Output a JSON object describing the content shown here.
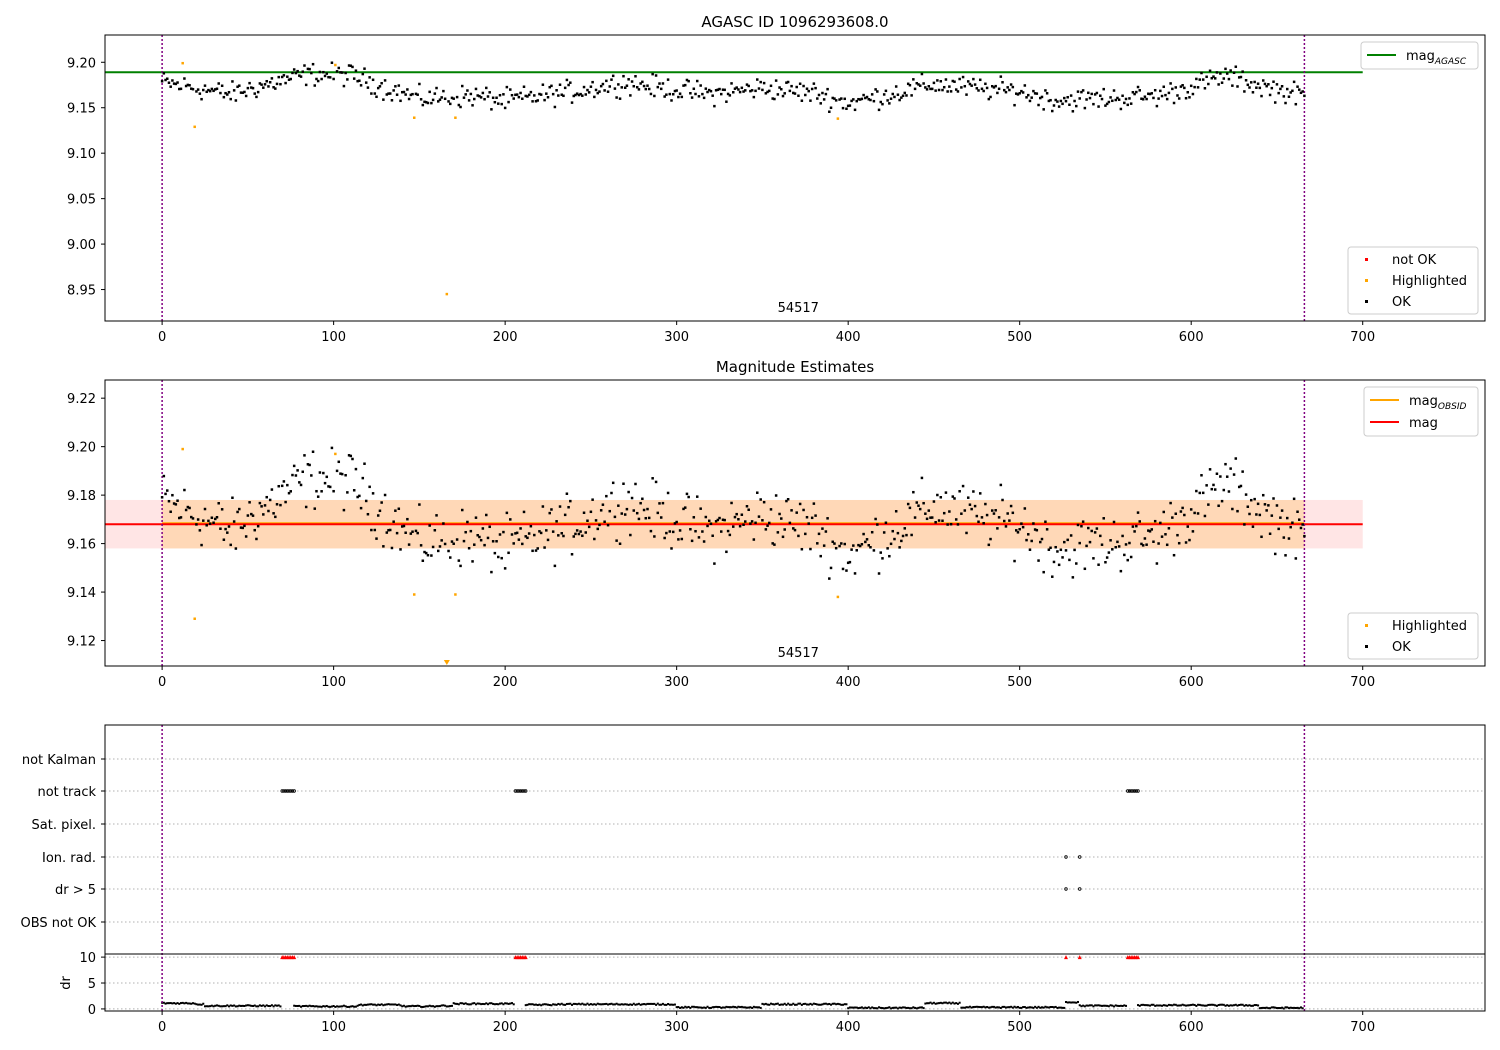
{
  "chart_data": [
    {
      "type": "scatter",
      "title": "AGASC ID 1096293608.0",
      "xlim": [
        -33.3,
        771.3
      ],
      "ylim": [
        8.9154,
        9.23
      ],
      "xticks": [
        0,
        100,
        200,
        300,
        400,
        500,
        600,
        700
      ],
      "yticks": [
        8.95,
        9.0,
        9.05,
        9.1,
        9.15,
        9.2
      ],
      "ytick_labels": [
        "8.95",
        "9.00",
        "9.05",
        "9.10",
        "9.15",
        "9.20"
      ],
      "grid": false,
      "vlines": [
        0,
        666
      ],
      "vline_color": "#800080",
      "obsid_label": "54517",
      "obsid_label_x": 333,
      "hline": {
        "name": "mag_AGASC",
        "y": 9.189,
        "x_range": [
          -33.3,
          700
        ],
        "color": "#008000"
      },
      "ok_trend": [
        [
          0,
          9.178
        ],
        [
          40,
          9.165
        ],
        [
          60,
          9.175
        ],
        [
          85,
          9.187
        ],
        [
          110,
          9.186
        ],
        [
          130,
          9.172
        ],
        [
          150,
          9.16
        ],
        [
          180,
          9.163
        ],
        [
          200,
          9.158
        ],
        [
          240,
          9.168
        ],
        [
          270,
          9.178
        ],
        [
          290,
          9.172
        ],
        [
          320,
          9.165
        ],
        [
          350,
          9.172
        ],
        [
          380,
          9.166
        ],
        [
          400,
          9.155
        ],
        [
          420,
          9.163
        ],
        [
          450,
          9.176
        ],
        [
          470,
          9.172
        ],
        [
          500,
          9.168
        ],
        [
          520,
          9.158
        ],
        [
          550,
          9.16
        ],
        [
          580,
          9.163
        ],
        [
          600,
          9.173
        ],
        [
          620,
          9.185
        ],
        [
          640,
          9.174
        ],
        [
          666,
          9.163
        ]
      ],
      "ok_spread": 0.008,
      "series": [
        {
          "name": "not OK",
          "color": "#ff0000",
          "points": []
        },
        {
          "name": "Highlighted",
          "color": "#ffa500",
          "points": [
            [
              12,
              9.199
            ],
            [
              19,
              9.129
            ],
            [
              101,
              9.197
            ],
            [
              147,
              9.139
            ],
            [
              166,
              8.945
            ],
            [
              171,
              9.139
            ],
            [
              394,
              9.138
            ]
          ]
        },
        {
          "name": "OK",
          "color": "#000000",
          "count": 666
        }
      ],
      "legend_upper": {
        "position": "upper right",
        "entries": [
          {
            "label": "mag",
            "sub": "AGASC",
            "color": "#008000"
          }
        ]
      },
      "legend_lower": {
        "position": "lower right",
        "entries": [
          {
            "label": "not OK",
            "color": "#ff0000"
          },
          {
            "label": "Highlighted",
            "color": "#ffa500"
          },
          {
            "label": "OK",
            "color": "#000000"
          }
        ]
      }
    },
    {
      "type": "scatter",
      "title": "Magnitude Estimates",
      "xlim": [
        -33.3,
        771.3
      ],
      "ylim": [
        9.1095,
        9.2275
      ],
      "xticks": [
        0,
        100,
        200,
        300,
        400,
        500,
        600,
        700
      ],
      "yticks": [
        9.12,
        9.14,
        9.16,
        9.18,
        9.2,
        9.22
      ],
      "ytick_labels": [
        "9.12",
        "9.14",
        "9.16",
        "9.18",
        "9.20",
        "9.22"
      ],
      "grid": false,
      "vlines": [
        0,
        666
      ],
      "obsid_label": "54517",
      "obsid_label_x": 333,
      "mag": {
        "name": "mag",
        "y": 9.168,
        "band": [
          9.158,
          9.178
        ],
        "x_range": [
          -33.3,
          700
        ],
        "color": "#ff0000"
      },
      "mag_obsid": {
        "name": "mag_OBSID",
        "y": 9.1683,
        "band": [
          9.158,
          9.178
        ],
        "x_range": [
          0,
          666
        ],
        "color": "#ffa500"
      },
      "highlighted": [
        [
          12,
          9.199
        ],
        [
          19,
          9.129
        ],
        [
          101,
          9.197
        ],
        [
          147,
          9.139
        ],
        [
          171,
          9.139
        ],
        [
          394,
          9.138
        ]
      ],
      "highlighted_off_scale": [
        166
      ],
      "legend_upper": {
        "position": "upper right",
        "entries": [
          {
            "label": "mag",
            "sub": "OBSID",
            "color": "#ffa500"
          },
          {
            "label": "mag",
            "sub": "",
            "color": "#ff0000"
          }
        ]
      },
      "legend_lower": {
        "position": "lower right",
        "entries": [
          {
            "label": "Highlighted",
            "color": "#ffa500"
          },
          {
            "label": "OK",
            "color": "#000000"
          }
        ]
      }
    },
    {
      "type": "scatter",
      "title": "",
      "xlim": [
        -33.3,
        771.3
      ],
      "xticks": [
        0,
        100,
        200,
        300,
        400,
        500,
        600,
        700
      ],
      "vlines": [
        0,
        666
      ],
      "flag_rows": [
        "not Kalman",
        "not track",
        "Sat. pixel.",
        "Ion. rad.",
        "dr > 5",
        "OBS not OK"
      ],
      "flags": {
        "not track": [
          [
            70,
            77
          ],
          [
            206,
            212
          ],
          [
            563,
            569
          ]
        ],
        "Ion. rad.": [
          [
            527,
            527
          ],
          [
            535,
            535
          ]
        ],
        "dr > 5": [
          [
            527,
            527
          ],
          [
            535,
            535
          ]
        ]
      },
      "dr": {
        "ylabel": "dr",
        "ylim": [
          -0.4,
          10.6
        ],
        "yticks": [
          0,
          5,
          10
        ],
        "clip_marker_y": 10,
        "clipped_x": [
          [
            70,
            77
          ],
          [
            206,
            212
          ],
          [
            527,
            527
          ],
          [
            535,
            535
          ],
          [
            563,
            569
          ]
        ],
        "segments": [
          [
            0,
            20,
            1.1
          ],
          [
            20,
            25,
            0.9
          ],
          [
            25,
            70,
            0.6
          ],
          [
            70,
            77,
            10
          ],
          [
            77,
            115,
            0.5
          ],
          [
            115,
            140,
            0.8
          ],
          [
            140,
            160,
            0.5
          ],
          [
            160,
            170,
            0.6
          ],
          [
            170,
            206,
            1.0
          ],
          [
            206,
            212,
            10
          ],
          [
            212,
            230,
            0.8
          ],
          [
            230,
            300,
            0.9
          ],
          [
            300,
            350,
            0.3
          ],
          [
            350,
            400,
            0.9
          ],
          [
            400,
            445,
            0.2
          ],
          [
            445,
            466,
            1.1
          ],
          [
            466,
            527,
            0.3
          ],
          [
            527,
            527,
            10
          ],
          [
            527,
            535,
            1.3
          ],
          [
            535,
            535,
            10
          ],
          [
            535,
            563,
            0.6
          ],
          [
            563,
            569,
            10
          ],
          [
            569,
            640,
            0.7
          ],
          [
            640,
            666,
            0.2
          ]
        ]
      }
    }
  ]
}
